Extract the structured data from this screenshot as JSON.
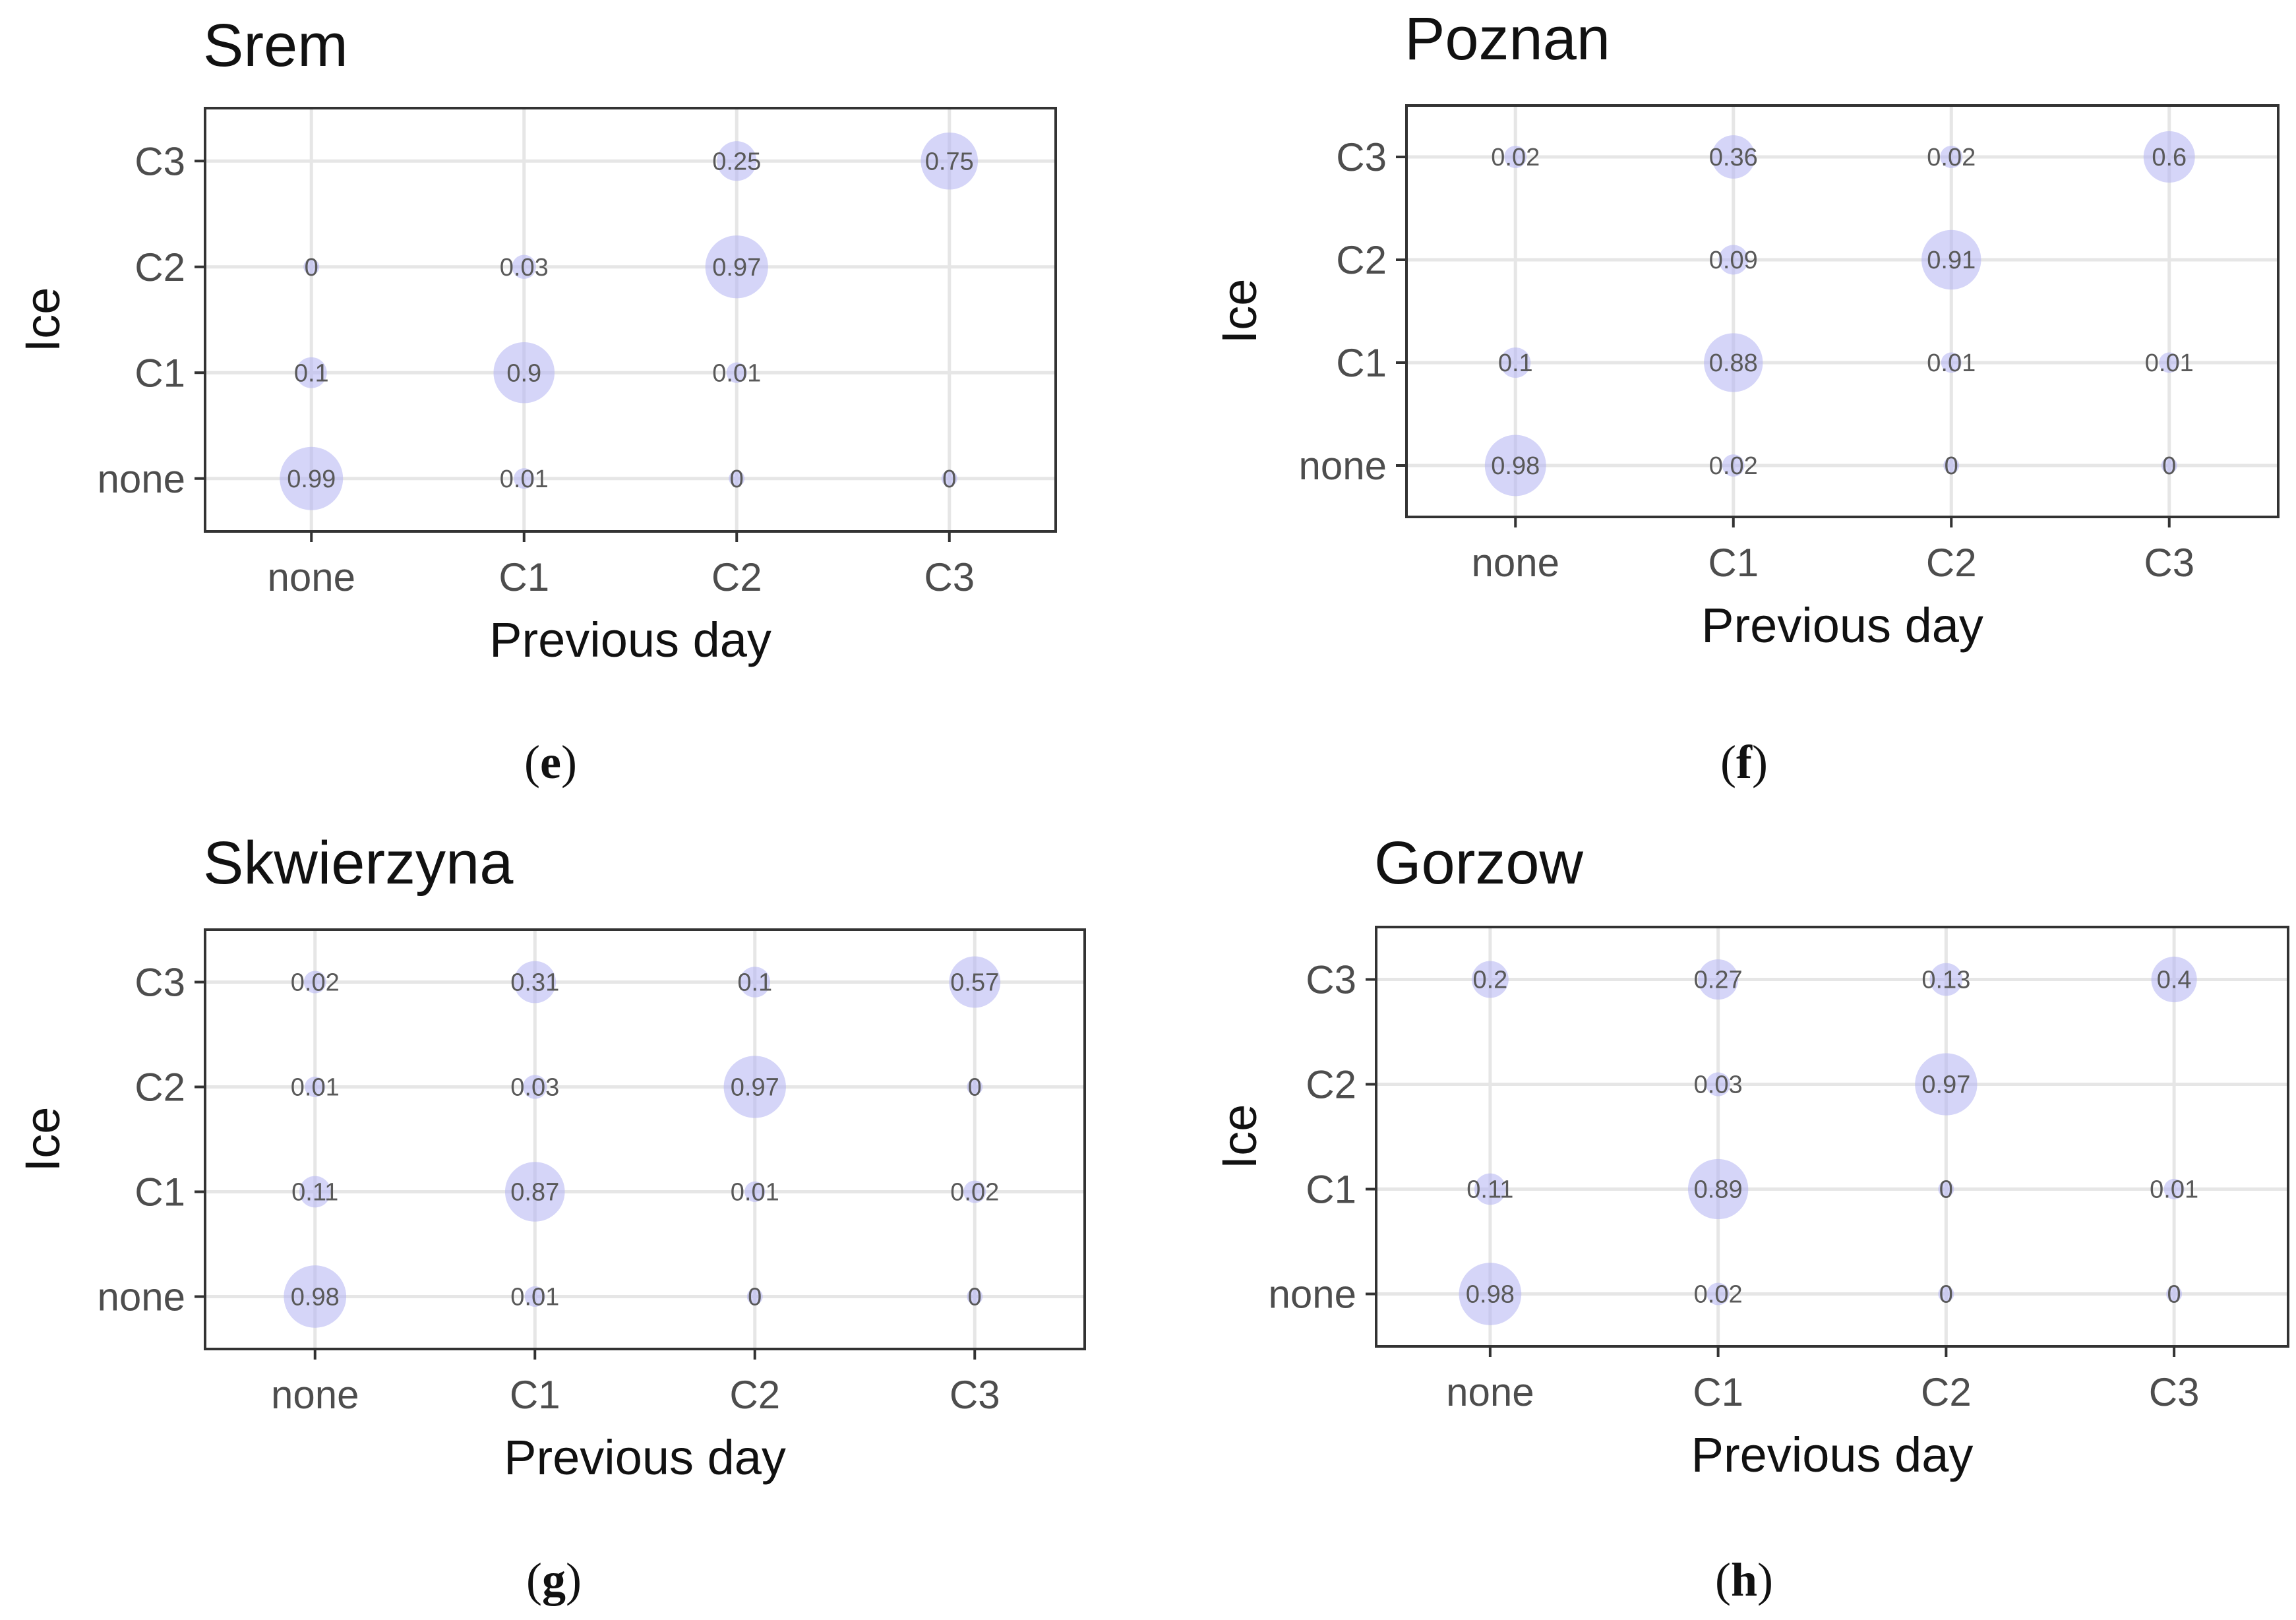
{
  "chart_data": [
    {
      "type": "scatter",
      "title": "Srem",
      "panel_label": "e",
      "xlabel": "Previous day",
      "ylabel": "Ice",
      "x_categories": [
        "none",
        "C1",
        "C2",
        "C3"
      ],
      "y_categories": [
        "none",
        "C1",
        "C2",
        "C3"
      ],
      "bubble_color": "#b3b3f2",
      "points": [
        {
          "x": "none",
          "y": "none",
          "value": 0.99,
          "label": "0.99"
        },
        {
          "x": "none",
          "y": "C1",
          "value": 0.1,
          "label": "0.1"
        },
        {
          "x": "none",
          "y": "C2",
          "value": 0,
          "label": "0"
        },
        {
          "x": "C1",
          "y": "none",
          "value": 0.01,
          "label": "0.01"
        },
        {
          "x": "C1",
          "y": "C1",
          "value": 0.9,
          "label": "0.9"
        },
        {
          "x": "C1",
          "y": "C2",
          "value": 0.03,
          "label": "0.03"
        },
        {
          "x": "C2",
          "y": "none",
          "value": 0,
          "label": "0"
        },
        {
          "x": "C2",
          "y": "C1",
          "value": 0.01,
          "label": "0.01"
        },
        {
          "x": "C2",
          "y": "C2",
          "value": 0.97,
          "label": "0.97"
        },
        {
          "x": "C2",
          "y": "C3",
          "value": 0.25,
          "label": "0.25"
        },
        {
          "x": "C3",
          "y": "none",
          "value": 0,
          "label": "0"
        },
        {
          "x": "C3",
          "y": "C3",
          "value": 0.75,
          "label": "0.75"
        }
      ]
    },
    {
      "type": "scatter",
      "title": "Poznan",
      "panel_label": "f",
      "xlabel": "Previous day",
      "ylabel": "Ice",
      "x_categories": [
        "none",
        "C1",
        "C2",
        "C3"
      ],
      "y_categories": [
        "none",
        "C1",
        "C2",
        "C3"
      ],
      "bubble_color": "#b3b3f2",
      "points": [
        {
          "x": "none",
          "y": "none",
          "value": 0.98,
          "label": "0.98"
        },
        {
          "x": "none",
          "y": "C1",
          "value": 0.1,
          "label": "0.1"
        },
        {
          "x": "none",
          "y": "C3",
          "value": 0.02,
          "label": "0.02"
        },
        {
          "x": "C1",
          "y": "none",
          "value": 0.02,
          "label": "0.02"
        },
        {
          "x": "C1",
          "y": "C1",
          "value": 0.88,
          "label": "0.88"
        },
        {
          "x": "C1",
          "y": "C2",
          "value": 0.09,
          "label": "0.09"
        },
        {
          "x": "C1",
          "y": "C3",
          "value": 0.36,
          "label": "0.36"
        },
        {
          "x": "C2",
          "y": "none",
          "value": 0,
          "label": "0"
        },
        {
          "x": "C2",
          "y": "C1",
          "value": 0.01,
          "label": "0.01"
        },
        {
          "x": "C2",
          "y": "C2",
          "value": 0.91,
          "label": "0.91"
        },
        {
          "x": "C2",
          "y": "C3",
          "value": 0.02,
          "label": "0.02"
        },
        {
          "x": "C3",
          "y": "none",
          "value": 0,
          "label": "0"
        },
        {
          "x": "C3",
          "y": "C1",
          "value": 0.01,
          "label": "0.01"
        },
        {
          "x": "C3",
          "y": "C3",
          "value": 0.6,
          "label": "0.6"
        }
      ]
    },
    {
      "type": "scatter",
      "title": "Skwierzyna",
      "panel_label": "g",
      "xlabel": "Previous day",
      "ylabel": "Ice",
      "x_categories": [
        "none",
        "C1",
        "C2",
        "C3"
      ],
      "y_categories": [
        "none",
        "C1",
        "C2",
        "C3"
      ],
      "bubble_color": "#b3b3f2",
      "points": [
        {
          "x": "none",
          "y": "none",
          "value": 0.98,
          "label": "0.98"
        },
        {
          "x": "none",
          "y": "C1",
          "value": 0.11,
          "label": "0.11"
        },
        {
          "x": "none",
          "y": "C2",
          "value": 0.01,
          "label": "0.01"
        },
        {
          "x": "none",
          "y": "C3",
          "value": 0.02,
          "label": "0.02"
        },
        {
          "x": "C1",
          "y": "none",
          "value": 0.01,
          "label": "0.01"
        },
        {
          "x": "C1",
          "y": "C1",
          "value": 0.87,
          "label": "0.87"
        },
        {
          "x": "C1",
          "y": "C2",
          "value": 0.03,
          "label": "0.03"
        },
        {
          "x": "C1",
          "y": "C3",
          "value": 0.31,
          "label": "0.31"
        },
        {
          "x": "C2",
          "y": "none",
          "value": 0,
          "label": "0"
        },
        {
          "x": "C2",
          "y": "C1",
          "value": 0.01,
          "label": "0.01"
        },
        {
          "x": "C2",
          "y": "C2",
          "value": 0.97,
          "label": "0.97"
        },
        {
          "x": "C2",
          "y": "C3",
          "value": 0.1,
          "label": "0.1"
        },
        {
          "x": "C3",
          "y": "none",
          "value": 0,
          "label": "0"
        },
        {
          "x": "C3",
          "y": "C1",
          "value": 0.02,
          "label": "0.02"
        },
        {
          "x": "C3",
          "y": "C2",
          "value": 0,
          "label": "0"
        },
        {
          "x": "C3",
          "y": "C3",
          "value": 0.57,
          "label": "0.57"
        }
      ]
    },
    {
      "type": "scatter",
      "title": "Gorzow",
      "panel_label": "h",
      "xlabel": "Previous day",
      "ylabel": "Ice",
      "x_categories": [
        "none",
        "C1",
        "C2",
        "C3"
      ],
      "y_categories": [
        "none",
        "C1",
        "C2",
        "C3"
      ],
      "bubble_color": "#b3b3f2",
      "points": [
        {
          "x": "none",
          "y": "none",
          "value": 0.98,
          "label": "0.98"
        },
        {
          "x": "none",
          "y": "C1",
          "value": 0.11,
          "label": "0.11"
        },
        {
          "x": "none",
          "y": "C3",
          "value": 0.2,
          "label": "0.2"
        },
        {
          "x": "C1",
          "y": "none",
          "value": 0.02,
          "label": "0.02"
        },
        {
          "x": "C1",
          "y": "C1",
          "value": 0.89,
          "label": "0.89"
        },
        {
          "x": "C1",
          "y": "C2",
          "value": 0.03,
          "label": "0.03"
        },
        {
          "x": "C1",
          "y": "C3",
          "value": 0.27,
          "label": "0.27"
        },
        {
          "x": "C2",
          "y": "none",
          "value": 0,
          "label": "0"
        },
        {
          "x": "C2",
          "y": "C1",
          "value": 0,
          "label": "0"
        },
        {
          "x": "C2",
          "y": "C2",
          "value": 0.97,
          "label": "0.97"
        },
        {
          "x": "C2",
          "y": "C3",
          "value": 0.13,
          "label": "0.13"
        },
        {
          "x": "C3",
          "y": "none",
          "value": 0,
          "label": "0"
        },
        {
          "x": "C3",
          "y": "C1",
          "value": 0.01,
          "label": "0.01"
        },
        {
          "x": "C3",
          "y": "C3",
          "value": 0.4,
          "label": "0.4"
        }
      ]
    }
  ]
}
